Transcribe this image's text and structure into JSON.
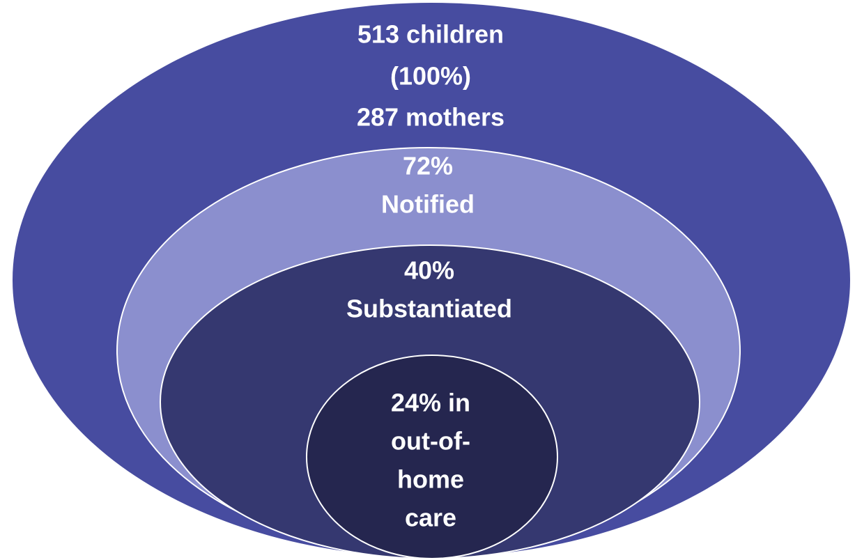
{
  "nodes": [
    {
      "lines": [
        "513 children",
        "(100%)",
        "287 mothers"
      ]
    },
    {
      "lines": [
        "72%",
        "Notified"
      ]
    },
    {
      "lines": [
        "40%",
        "Substantiated"
      ]
    },
    {
      "lines": [
        "24% in",
        "out-of-",
        "home",
        "care"
      ]
    }
  ]
}
